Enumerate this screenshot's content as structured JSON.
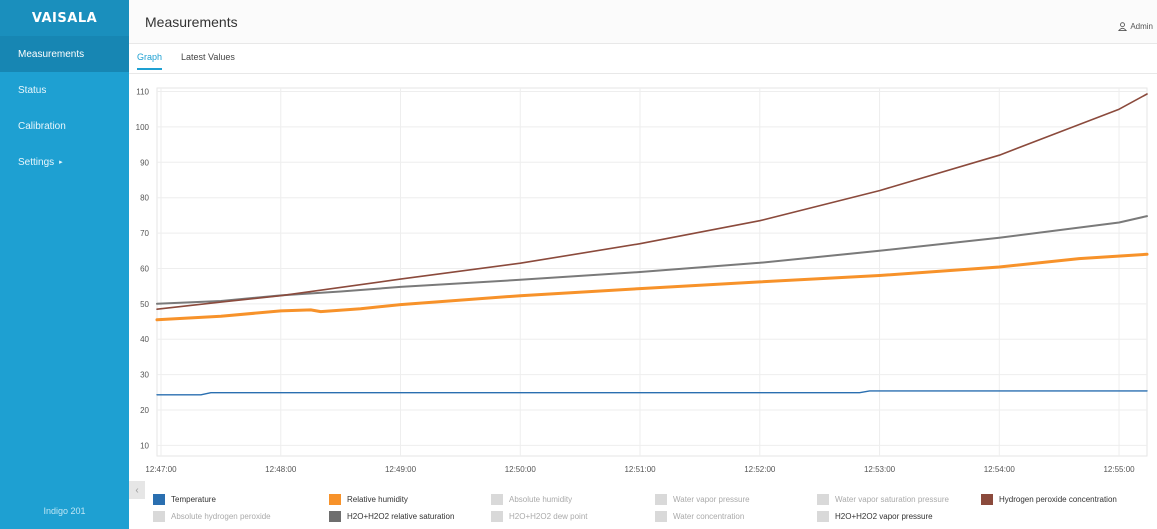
{
  "app": {
    "logo": "VAISALA",
    "footer": "Indigo 201"
  },
  "sidebar": {
    "items": [
      {
        "label": "Measurements",
        "active": true
      },
      {
        "label": "Status",
        "active": false
      },
      {
        "label": "Calibration",
        "active": false
      },
      {
        "label": "Settings",
        "active": false,
        "caret": "▸"
      }
    ],
    "collapse_icon": "chevron-left-icon",
    "collapse_glyph": "‹"
  },
  "header": {
    "title": "Measurements",
    "user": "Admin",
    "user_icon": "user-icon"
  },
  "tabs": [
    {
      "label": "Graph",
      "active": true
    },
    {
      "label": "Latest Values",
      "active": false
    }
  ],
  "colors": {
    "accent": "#1ea0d2",
    "temperature": "#2a6fb0",
    "relative_humidity": "#f7922a",
    "h2o2_relative_saturation": "#6e6e6e",
    "hydrogen_peroxide_concentration": "#8b4a3c",
    "disabled": "#d9d9d9"
  },
  "chart_data": {
    "type": "line",
    "title": "",
    "xlabel": "",
    "ylabel": "",
    "x_ticks": [
      "12:47:00",
      "12:48:00",
      "12:49:00",
      "12:50:00",
      "12:51:00",
      "12:52:00",
      "12:53:00",
      "12:54:00",
      "12:55:00"
    ],
    "y_ticks": [
      10,
      20,
      30,
      40,
      50,
      60,
      70,
      80,
      90,
      100,
      110
    ],
    "ylim": [
      7,
      111
    ],
    "xlim": [
      "12:46:58",
      "12:55:14"
    ],
    "grid": true,
    "series": [
      {
        "name": "Temperature",
        "color": "#2a6fb0",
        "width": 1.4,
        "points": [
          [
            "12:46:58",
            24.3
          ],
          [
            "12:47:20",
            24.3
          ],
          [
            "12:47:25",
            24.9
          ],
          [
            "12:52:50",
            24.9
          ],
          [
            "12:52:55",
            25.4
          ],
          [
            "12:55:14",
            25.4
          ]
        ]
      },
      {
        "name": "Relative humidity",
        "color": "#f7922a",
        "width": 3,
        "points": [
          [
            "12:46:58",
            45.5
          ],
          [
            "12:47:30",
            46.5
          ],
          [
            "12:48:00",
            48.0
          ],
          [
            "12:48:15",
            48.3
          ],
          [
            "12:48:20",
            47.8
          ],
          [
            "12:48:40",
            48.6
          ],
          [
            "12:49:00",
            49.8
          ],
          [
            "12:50:00",
            52.3
          ],
          [
            "12:51:00",
            54.3
          ],
          [
            "12:52:00",
            56.2
          ],
          [
            "12:53:00",
            58.0
          ],
          [
            "12:54:00",
            60.4
          ],
          [
            "12:54:40",
            62.8
          ],
          [
            "12:55:14",
            64.0
          ]
        ]
      },
      {
        "name": "H2O+H2O2 relative saturation",
        "color": "#7a7a7a",
        "width": 2,
        "points": [
          [
            "12:46:58",
            50.0
          ],
          [
            "12:47:30",
            50.8
          ],
          [
            "12:48:00",
            52.4
          ],
          [
            "12:48:30",
            53.5
          ],
          [
            "12:49:00",
            54.8
          ],
          [
            "12:50:00",
            56.8
          ],
          [
            "12:51:00",
            59.0
          ],
          [
            "12:52:00",
            61.6
          ],
          [
            "12:53:00",
            65.0
          ],
          [
            "12:54:00",
            68.7
          ],
          [
            "12:55:00",
            73.0
          ],
          [
            "12:55:14",
            74.8
          ]
        ]
      },
      {
        "name": "Hydrogen peroxide concentration",
        "color": "#8b4a3c",
        "width": 1.6,
        "points": [
          [
            "12:46:58",
            48.5
          ],
          [
            "12:47:30",
            50.5
          ],
          [
            "12:48:00",
            52.3
          ],
          [
            "12:49:00",
            57.0
          ],
          [
            "12:50:00",
            61.5
          ],
          [
            "12:51:00",
            67.0
          ],
          [
            "12:52:00",
            73.5
          ],
          [
            "12:53:00",
            82.0
          ],
          [
            "12:54:00",
            92.0
          ],
          [
            "12:55:00",
            105.0
          ],
          [
            "12:55:14",
            109.3
          ]
        ]
      }
    ],
    "legend": [
      {
        "label": "Temperature",
        "color": "#2a6fb0",
        "enabled": true
      },
      {
        "label": "Relative humidity",
        "color": "#f7922a",
        "enabled": true
      },
      {
        "label": "Absolute humidity",
        "color": "#d9d9d9",
        "enabled": false
      },
      {
        "label": "Water vapor pressure",
        "color": "#d9d9d9",
        "enabled": false
      },
      {
        "label": "Water vapor saturation pressure",
        "color": "#d9d9d9",
        "enabled": false
      },
      {
        "label": "Hydrogen peroxide concentration",
        "color": "#8b4a3c",
        "enabled": true
      },
      {
        "label": "Absolute hydrogen peroxide",
        "color": "#d9d9d9",
        "enabled": false
      },
      {
        "label": "H2O+H2O2 relative saturation",
        "color": "#6e6e6e",
        "enabled": true
      },
      {
        "label": "H2O+H2O2 dew point",
        "color": "#d9d9d9",
        "enabled": false
      },
      {
        "label": "Water concentration",
        "color": "#d9d9d9",
        "enabled": false
      },
      {
        "label": "H2O+H2O2 vapor pressure",
        "color": "#d9d9d9",
        "enabled": true
      }
    ]
  }
}
